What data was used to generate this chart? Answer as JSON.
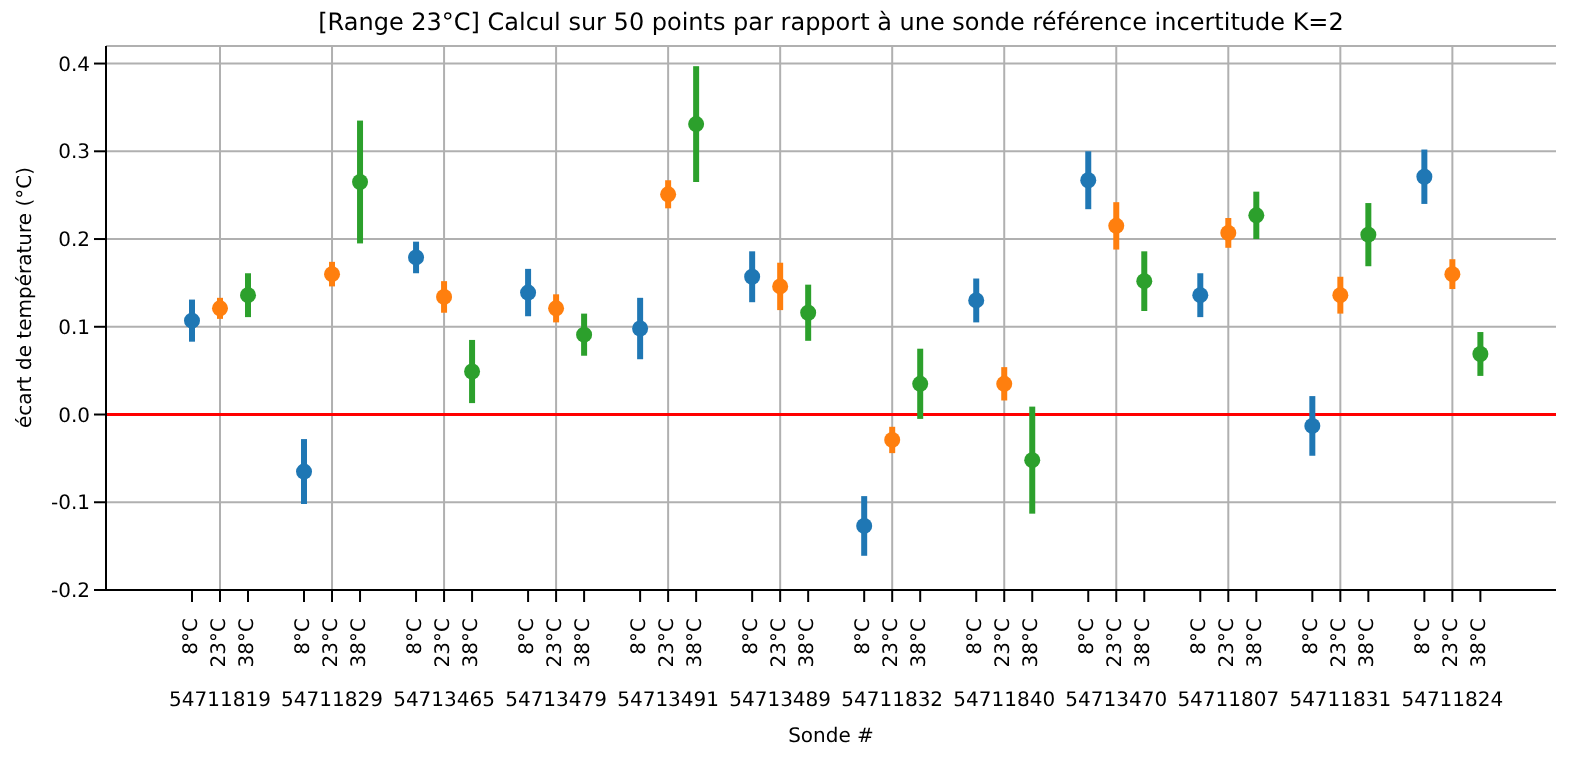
{
  "chart_data": {
    "type": "scatter",
    "title": "[Range 23°C] Calcul sur 50 points par rapport à une sonde référence incertitude K=2",
    "xlabel": "Sonde #",
    "ylabel": "écart de température (°C)",
    "categories": [
      "8°C",
      "23°C",
      "38°C",
      null,
      "8°C",
      "23°C",
      "38°C",
      null,
      "8°C",
      "23°C",
      "38°C",
      null,
      "8°C",
      "23°C",
      "38°C",
      null,
      "8°C",
      "23°C",
      "38°C",
      null,
      "8°C",
      "23°C",
      "38°C",
      null,
      "8°C",
      "23°C",
      "38°C",
      null,
      "8°C",
      "23°C",
      "38°C",
      null,
      "8°C",
      "23°C",
      "38°C",
      null,
      "8°C",
      "23°C",
      "38°C",
      null,
      "8°C",
      "23°C",
      "38°C",
      null,
      "8°C",
      "23°C",
      "38°C"
    ],
    "annotations": [
      "54711819",
      "54711829",
      "54713465",
      "54713479",
      "54713491",
      "54713489",
      "54711832",
      "54711840",
      "54713470",
      "54711807",
      "54711831",
      "54711824"
    ],
    "series": [
      {
        "color": "#1f77b4",
        "values": [
          0.107,
          null,
          null,
          null,
          -0.065,
          null,
          null,
          null,
          0.179,
          null,
          null,
          null,
          0.139,
          null,
          null,
          null,
          0.098,
          null,
          null,
          null,
          0.157,
          null,
          null,
          null,
          -0.127,
          null,
          null,
          null,
          0.13,
          null,
          null,
          null,
          0.267,
          null,
          null,
          null,
          0.136,
          null,
          null,
          null,
          -0.013,
          null,
          null,
          null,
          0.271,
          null,
          null
        ],
        "errors": [
          0.024,
          null,
          null,
          null,
          0.037,
          null,
          null,
          null,
          0.018,
          null,
          null,
          null,
          0.027,
          null,
          null,
          null,
          0.035,
          null,
          null,
          null,
          0.029,
          null,
          null,
          null,
          0.034,
          null,
          null,
          null,
          0.025,
          null,
          null,
          null,
          0.033,
          null,
          null,
          null,
          0.025,
          null,
          null,
          null,
          0.034,
          null,
          null,
          null,
          0.031,
          null,
          null
        ]
      },
      {
        "color": "#ff7f0e",
        "values": [
          null,
          0.121,
          null,
          null,
          null,
          0.16,
          null,
          null,
          null,
          0.134,
          null,
          null,
          null,
          0.121,
          null,
          null,
          null,
          0.251,
          null,
          null,
          null,
          0.146,
          null,
          null,
          null,
          -0.029,
          null,
          null,
          null,
          0.035,
          null,
          null,
          null,
          0.215,
          null,
          null,
          null,
          0.207,
          null,
          null,
          null,
          0.136,
          null,
          null,
          null,
          0.16,
          null
        ],
        "errors": [
          null,
          0.012,
          null,
          null,
          null,
          0.014,
          null,
          null,
          null,
          0.018,
          null,
          null,
          null,
          0.016,
          null,
          null,
          null,
          0.016,
          null,
          null,
          null,
          0.027,
          null,
          null,
          null,
          0.015,
          null,
          null,
          null,
          0.019,
          null,
          null,
          null,
          0.027,
          null,
          null,
          null,
          0.017,
          null,
          null,
          null,
          0.021,
          null,
          null,
          null,
          0.017,
          null
        ]
      },
      {
        "color": "#2ca02c",
        "values": [
          null,
          null,
          0.136,
          null,
          null,
          null,
          0.265,
          null,
          null,
          null,
          0.049,
          null,
          null,
          null,
          0.091,
          null,
          null,
          null,
          0.331,
          null,
          null,
          null,
          0.116,
          null,
          null,
          null,
          0.035,
          null,
          null,
          null,
          -0.052,
          null,
          null,
          null,
          0.152,
          null,
          null,
          null,
          0.227,
          null,
          null,
          null,
          0.205,
          null,
          null,
          null,
          0.069
        ],
        "errors": [
          null,
          null,
          0.025,
          null,
          null,
          null,
          0.07,
          null,
          null,
          null,
          0.036,
          null,
          null,
          null,
          0.024,
          null,
          null,
          null,
          0.066,
          null,
          null,
          null,
          0.032,
          null,
          null,
          null,
          0.04,
          null,
          null,
          null,
          0.061,
          null,
          null,
          null,
          0.034,
          null,
          null,
          null,
          0.027,
          null,
          null,
          null,
          0.036,
          null,
          null,
          null,
          0.025
        ]
      }
    ],
    "ylim": [
      -0.2,
      0.42
    ],
    "yticks": [
      {
        "value": -0.2,
        "label": "-0.2"
      },
      {
        "value": -0.1,
        "label": "-0.1"
      },
      {
        "value": 0,
        "label": "0.0"
      },
      {
        "value": 0.1,
        "label": "0.1"
      },
      {
        "value": 0.2,
        "label": "0.2"
      },
      {
        "value": 0.3,
        "label": "0.3"
      },
      {
        "value": 0.4,
        "label": "0.4"
      }
    ],
    "ref_lines": [
      {
        "axis": "y",
        "value": 0,
        "color": "#ff0000"
      }
    ],
    "grid": true,
    "marker": "circle",
    "legend": false
  }
}
